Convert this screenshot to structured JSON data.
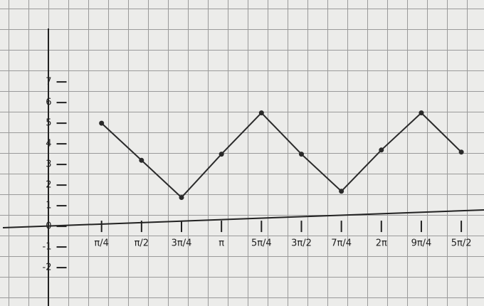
{
  "chart_data": {
    "type": "line",
    "x": [
      0.7854,
      1.5708,
      2.3562,
      3.1416,
      3.927,
      4.7124,
      5.4978,
      6.2832,
      7.0686,
      7.854
    ],
    "values": [
      5.0,
      3.2,
      1.4,
      3.5,
      5.5,
      3.5,
      1.7,
      3.7,
      5.5,
      3.6
    ],
    "color": "#2a2a2a",
    "xlim": [
      -1.21,
      8.3
    ],
    "ylim": [
      -3.86,
      10.97
    ],
    "xticks": [
      {
        "value": 0.7854,
        "label": "π/4"
      },
      {
        "value": 1.5708,
        "label": "π/2"
      },
      {
        "value": 2.3562,
        "label": "3π/4"
      },
      {
        "value": 3.1416,
        "label": "π"
      },
      {
        "value": 3.927,
        "label": "5π/4"
      },
      {
        "value": 4.7124,
        "label": "3π/2"
      },
      {
        "value": 5.4978,
        "label": "7π/4"
      },
      {
        "value": 6.2832,
        "label": "2π"
      },
      {
        "value": 7.0686,
        "label": "9π/4"
      },
      {
        "value": 7.854,
        "label": "5π/2"
      }
    ],
    "yticks": [
      -2,
      -1,
      0,
      1,
      2,
      3,
      4,
      5,
      6,
      7
    ]
  }
}
